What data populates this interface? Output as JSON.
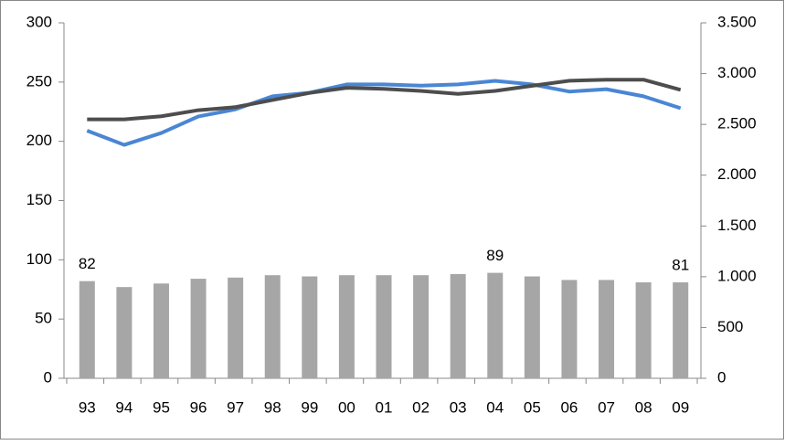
{
  "chart_data": {
    "type": "bar",
    "categories": [
      "93",
      "94",
      "95",
      "96",
      "97",
      "98",
      "99",
      "00",
      "01",
      "02",
      "03",
      "04",
      "05",
      "06",
      "07",
      "08",
      "09"
    ],
    "series": [
      {
        "type": "bar",
        "color": "#a6a6a6",
        "axis": "y",
        "values": [
          82,
          77,
          80,
          84,
          85,
          87,
          86,
          87,
          87,
          87,
          88,
          89,
          86,
          83,
          83,
          81,
          81
        ],
        "value_labels": [
          "82",
          null,
          null,
          null,
          null,
          null,
          null,
          null,
          null,
          null,
          null,
          "89",
          null,
          null,
          null,
          null,
          "81"
        ]
      },
      {
        "type": "line",
        "color": "#4a86d4",
        "axis": "y",
        "values": [
          209,
          197,
          207,
          221,
          227,
          238,
          241,
          248,
          248,
          247,
          248,
          251,
          248,
          242,
          244,
          238,
          228
        ]
      },
      {
        "type": "line",
        "color": "#4d4d4d",
        "axis": "y2",
        "values": [
          2550,
          2550,
          2580,
          2640,
          2670,
          2740,
          2810,
          2860,
          2850,
          2830,
          2800,
          2830,
          2880,
          2930,
          2940,
          2940,
          2840
        ]
      }
    ],
    "ylim": [
      0,
      300
    ],
    "yticks": [
      0,
      50,
      100,
      150,
      200,
      250,
      300
    ],
    "y2lim": [
      0,
      3500
    ],
    "y2ticks": [
      0,
      500,
      {
        "value": 1000,
        "label": "1.000"
      },
      {
        "value": 1500,
        "label": "1.500"
      },
      {
        "value": 2000,
        "label": "2.000"
      },
      {
        "value": 2500,
        "label": "2.500"
      },
      {
        "value": 3000,
        "label": "3.000"
      },
      {
        "value": 3500,
        "label": "3.500"
      }
    ],
    "grid": false
  }
}
